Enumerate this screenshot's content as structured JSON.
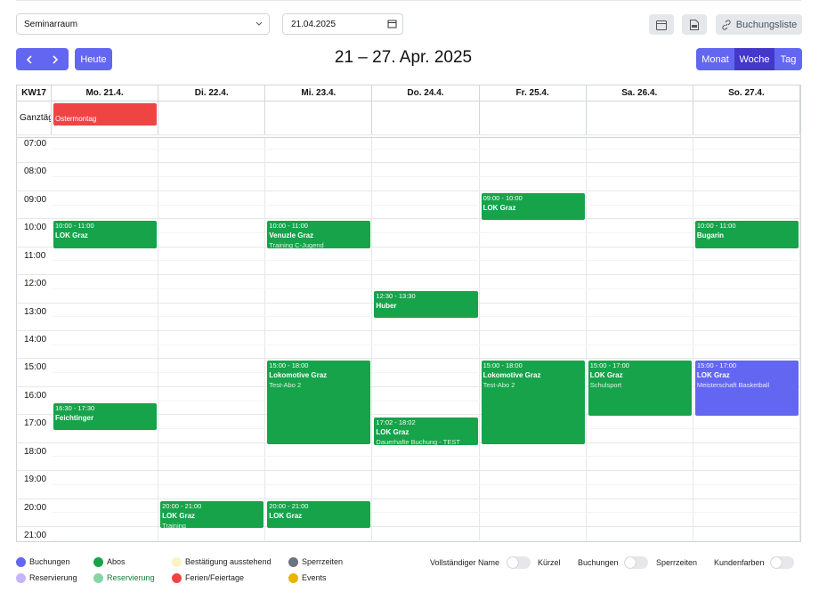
{
  "toolbar": {
    "room": "Seminarraum",
    "date": "21.04.2025",
    "booking_list": "Buchungsliste",
    "today": "Heute",
    "range_title": "21 – 27. Apr. 2025",
    "views": [
      "Monat",
      "Woche",
      "Tag"
    ]
  },
  "calendar": {
    "week": "KW17",
    "allday_label": "Ganztäg",
    "days": [
      {
        "label": "Mo. 21.4.",
        "allday": [
          "Ostermontag"
        ],
        "events": [
          {
            "time": "10:00 - 11:00",
            "title": "LOK Graz"
          },
          {
            "time": "16:30 - 17:30",
            "title": "Feichtinger"
          }
        ]
      },
      {
        "label": "Di. 22.4.",
        "allday": [],
        "events": [
          {
            "time": "20:00 - 21:00",
            "title": "LOK Graz",
            "subtitle": "Training"
          }
        ]
      },
      {
        "label": "Mi. 23.4.",
        "allday": [],
        "events": [
          {
            "time": "10:00 - 11:00",
            "title": "Venuzle Graz",
            "subtitle": "Training C-Jugend"
          },
          {
            "time": "15:00 - 18:00",
            "title": "Lokomotive Graz",
            "subtitle": "Test-Abo 2"
          },
          {
            "time": "20:00 - 21:00",
            "title": "LOK Graz"
          }
        ]
      },
      {
        "label": "Do. 24.4.",
        "allday": [],
        "events": [
          {
            "time": "12:30 - 13:30",
            "title": "Huber"
          },
          {
            "time": "17:02 - 18:02",
            "title": "LOK Graz",
            "subtitle": "Dauerhafte Buchung - TEST"
          }
        ]
      },
      {
        "label": "Fr. 25.4.",
        "allday": [],
        "events": [
          {
            "time": "09:00 - 10:00",
            "title": "LOK Graz"
          },
          {
            "time": "15:00 - 18:00",
            "title": "Lokomotive Graz",
            "subtitle": "Test-Abo 2"
          }
        ]
      },
      {
        "label": "Sa. 26.4.",
        "allday": [],
        "events": [
          {
            "time": "15:00 - 17:00",
            "title": "LOK Graz",
            "subtitle": "Schulsport"
          }
        ]
      },
      {
        "label": "So. 27.4.",
        "allday": [],
        "events": [
          {
            "time": "10:00 - 11:00",
            "title": "Bugarin"
          },
          {
            "time": "15:00 - 17:00",
            "title": "LOK Graz",
            "subtitle": "Meisterschaft Basketball",
            "kind": "booking"
          }
        ]
      }
    ],
    "hours": [
      "07:00",
      "08:00",
      "09:00",
      "10:00",
      "11:00",
      "12:00",
      "13:00",
      "14:00",
      "15:00",
      "16:00",
      "17:00",
      "18:00",
      "19:00",
      "20:00",
      "21:00"
    ]
  },
  "legend": [
    {
      "label": "Buchungen",
      "color": "#6366f1"
    },
    {
      "label": "Abos",
      "color": "#16a34a"
    },
    {
      "label": "Bestätigung ausstehend",
      "color": "#fef3c7"
    },
    {
      "label": "Sperrzeiten",
      "color": "#6b7280"
    },
    {
      "label": "Reservierung",
      "color": "#c4b5fd"
    },
    {
      "label": "Reservierung",
      "color": "#86d5a4",
      "text_color": "#15803d"
    },
    {
      "label": "Ferien/Feiertage",
      "color": "#ef4444"
    },
    {
      "label": "Events",
      "color": "#eab308"
    }
  ],
  "toggles": [
    {
      "left": "Vollständiger Name",
      "right": "Kürzel"
    },
    {
      "left": "Buchungen",
      "right": "Sperrzeiten"
    },
    {
      "left": "Kundenfarben"
    }
  ]
}
